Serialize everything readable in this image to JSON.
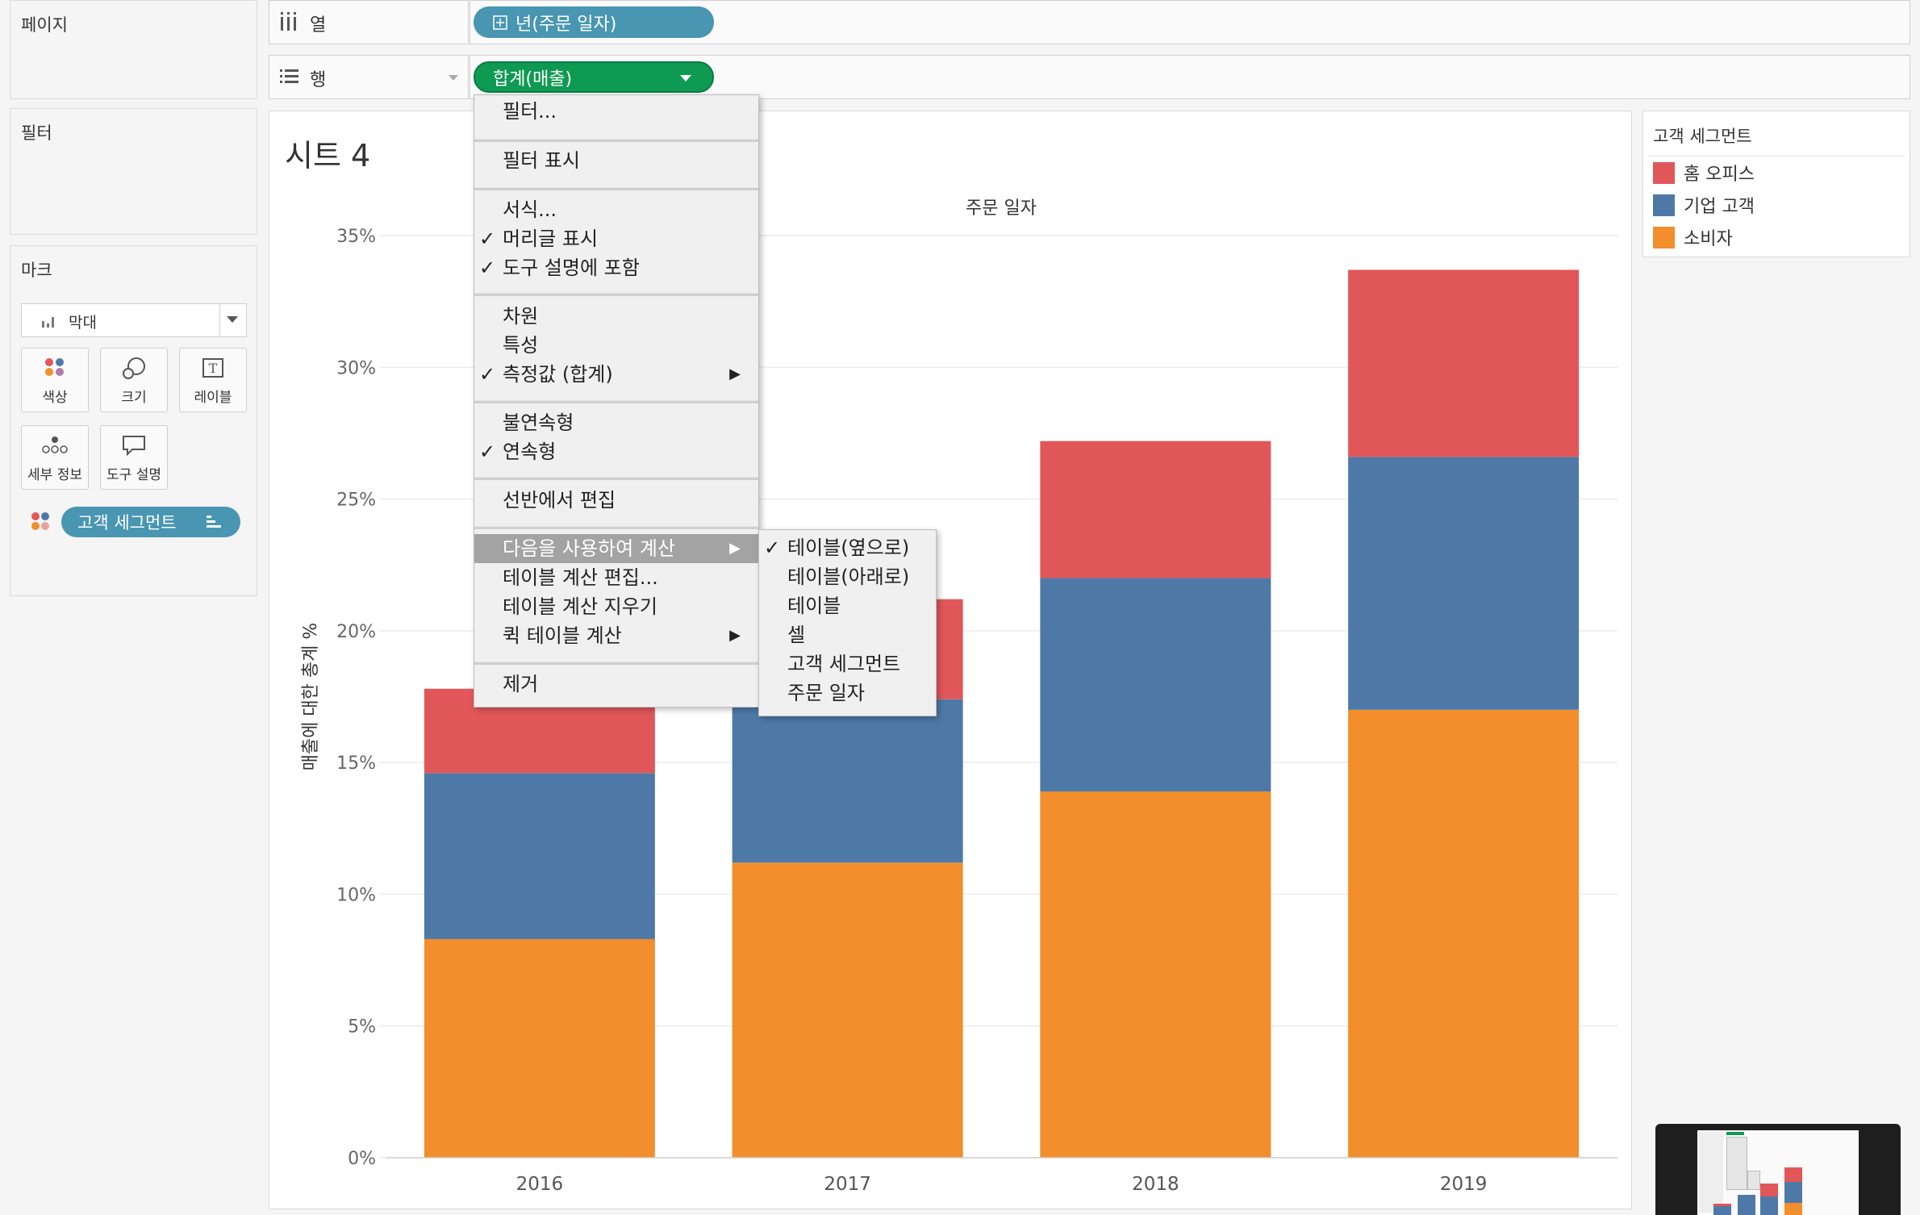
{
  "panels": {
    "pages_title": "페이지",
    "filters_title": "필터",
    "marks_title": "마크"
  },
  "shelves": {
    "columns_label": "열",
    "rows_label": "행",
    "columns_pill": "년(주문 일자)",
    "rows_pill": "합계(매출)"
  },
  "marks": {
    "type_value": "막대",
    "buttons": {
      "color": "색상",
      "size": "크기",
      "label": "레이블",
      "detail": "세부 정보",
      "tooltip": "도구 설명"
    },
    "color_pill": "고객 세그먼트"
  },
  "sheet": {
    "title": "시트 4",
    "column_header": "주문 일자",
    "y_axis_title": "매출에 대한 총계 %"
  },
  "legend": {
    "title": "고객 세그먼트",
    "items": [
      {
        "label": "홈 오피스",
        "color": "#e15759"
      },
      {
        "label": "기업 고객",
        "color": "#4e79a7"
      },
      {
        "label": "소비자",
        "color": "#f28e2b"
      }
    ]
  },
  "context_menu": {
    "items": {
      "filter": "필터...",
      "show_filter": "필터 표시",
      "format": "서식...",
      "show_header": "머리글 표시",
      "include_tooltip": "도구 설명에 포함",
      "dimension": "차원",
      "attribute": "특성",
      "measure": "측정값 (합계)",
      "discrete": "불연속형",
      "continuous": "연속형",
      "edit_in_shelf": "선반에서 편집",
      "compute_using": "다음을 사용하여 계산",
      "edit_table_calc": "테이블 계산 편집...",
      "clear_table_calc": "테이블 계산 지우기",
      "quick_table_calc": "퀵 테이블 계산",
      "remove": "제거"
    },
    "checkmark": "✓",
    "submenu_arrow": "▶"
  },
  "submenu": {
    "items": {
      "table_across": "테이블(옆으로)",
      "table_down": "테이블(아래로)",
      "table": "테이블",
      "cell": "셀",
      "customer_segment": "고객 세그먼트",
      "order_date": "주문 일자"
    }
  },
  "chart_data": {
    "type": "bar",
    "stacked": true,
    "categories": [
      "2016",
      "2017",
      "2018",
      "2019"
    ],
    "series": [
      {
        "name": "소비자",
        "color": "#f28e2b",
        "values": [
          8.3,
          11.2,
          13.9,
          17.0
        ]
      },
      {
        "name": "기업 고객",
        "color": "#4e79a7",
        "values": [
          6.3,
          6.2,
          8.1,
          9.6
        ]
      },
      {
        "name": "홈 오피스",
        "color": "#e15759",
        "values": [
          3.2,
          3.8,
          5.2,
          7.1
        ]
      }
    ],
    "ylim": [
      0,
      35
    ],
    "yticks": [
      "0%",
      "5%",
      "10%",
      "15%",
      "20%",
      "25%",
      "30%",
      "35%"
    ],
    "ytick_values": [
      0,
      5,
      10,
      15,
      20,
      25,
      30,
      35
    ],
    "ylabel": "매출에 대한 총계 %",
    "xlabel": "주문 일자",
    "grid": true
  }
}
